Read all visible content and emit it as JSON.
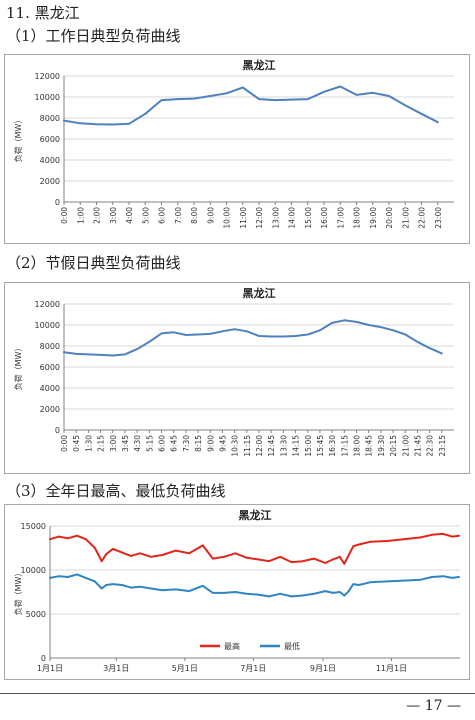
{
  "document": {
    "section_heading": "11. 黑龙江",
    "sub1": "（1）工作日典型负荷曲线",
    "sub2": "（2）节假日典型负荷曲线",
    "sub3": "（3）全年日最高、最低负荷曲线",
    "page_number": "— 17 —"
  },
  "chart_data": [
    {
      "type": "line",
      "title": "黑龙江",
      "ylabel": "负荷（MW）",
      "ylim": [
        0,
        12000
      ],
      "yticks": [
        "0",
        "2000",
        "4000",
        "6000",
        "8000",
        "10000",
        "12000"
      ],
      "categories": [
        "0:00",
        "1:00",
        "2:00",
        "3:00",
        "4:00",
        "5:00",
        "6:00",
        "7:00",
        "8:00",
        "9:00",
        "10:00",
        "11:00",
        "12:00",
        "13:00",
        "14:00",
        "15:00",
        "16:00",
        "17:00",
        "18:00",
        "19:00",
        "20:00",
        "21:00",
        "22:00",
        "23:00"
      ],
      "grid": true,
      "color": "#4f81bd",
      "series": [
        {
          "values": [
            7750,
            7500,
            7400,
            7380,
            7450,
            8400,
            9700,
            9800,
            9850,
            10100,
            10350,
            10900,
            9800,
            9700,
            9750,
            9800,
            10500,
            11000,
            10200,
            10400,
            10100,
            9200,
            8400,
            7600
          ]
        }
      ]
    },
    {
      "type": "line",
      "title": "黑龙江",
      "ylabel": "负荷（MW）",
      "ylim": [
        0,
        12000
      ],
      "yticks": [
        "0",
        "2000",
        "4000",
        "6000",
        "8000",
        "10000",
        "12000"
      ],
      "categories": [
        "0:00",
        "0:45",
        "1:30",
        "2:15",
        "3:00",
        "3:45",
        "4:30",
        "5:15",
        "6:00",
        "6:45",
        "7:30",
        "8:15",
        "9:00",
        "9:45",
        "10:30",
        "11:15",
        "12:00",
        "12:45",
        "13:30",
        "14:15",
        "15:00",
        "15:45",
        "16:30",
        "17:15",
        "18:00",
        "18:45",
        "19:30",
        "20:15",
        "21:00",
        "21:45",
        "22:30",
        "23:15"
      ],
      "grid": true,
      "color": "#4f81bd",
      "series": [
        {
          "values": [
            7400,
            7250,
            7200,
            7150,
            7100,
            7200,
            7700,
            8400,
            9200,
            9300,
            9050,
            9100,
            9150,
            9400,
            9600,
            9400,
            8950,
            8900,
            8900,
            8950,
            9100,
            9500,
            10200,
            10450,
            10300,
            10000,
            9800,
            9500,
            9100,
            8400,
            7800,
            7300
          ]
        }
      ]
    },
    {
      "type": "line",
      "title": "黑龙江",
      "ylabel": "负荷（MW）",
      "ylim": [
        0,
        15000
      ],
      "yticks": [
        "0",
        "5000",
        "10000",
        "15000"
      ],
      "x_ticks": [
        "1月1日",
        "3月1日",
        "5月1日",
        "7月1日",
        "9月1日",
        "11月1日"
      ],
      "x_tick_days": [
        0,
        59,
        120,
        181,
        243,
        304
      ],
      "x_range_days": [
        0,
        365
      ],
      "grid": true,
      "legend_placement": "bottom",
      "series": [
        {
          "name": "最高",
          "color": "#e0251b",
          "x_days": [
            0,
            8,
            16,
            24,
            32,
            40,
            46,
            50,
            56,
            64,
            72,
            80,
            90,
            100,
            112,
            124,
            136,
            145,
            155,
            165,
            175,
            185,
            195,
            205,
            215,
            225,
            235,
            245,
            252,
            258,
            262,
            266,
            270,
            275,
            285,
            300,
            315,
            330,
            340,
            350,
            358,
            364
          ],
          "values": [
            13500,
            13800,
            13600,
            13900,
            13500,
            12500,
            11000,
            11800,
            12400,
            12000,
            11600,
            11900,
            11500,
            11700,
            12200,
            11900,
            12800,
            11300,
            11500,
            11900,
            11400,
            11200,
            11000,
            11500,
            10900,
            11000,
            11300,
            10800,
            11200,
            11500,
            10700,
            11700,
            12700,
            12900,
            13200,
            13300,
            13500,
            13700,
            14000,
            14100,
            13800,
            13900
          ]
        },
        {
          "name": "最低",
          "color": "#2e86c1",
          "x_days": [
            0,
            8,
            16,
            24,
            32,
            40,
            46,
            50,
            56,
            64,
            72,
            80,
            90,
            100,
            112,
            124,
            136,
            145,
            155,
            165,
            175,
            185,
            195,
            205,
            215,
            225,
            235,
            245,
            252,
            258,
            262,
            266,
            270,
            275,
            285,
            300,
            315,
            330,
            340,
            350,
            358,
            364
          ],
          "values": [
            9100,
            9300,
            9200,
            9500,
            9100,
            8700,
            7900,
            8300,
            8400,
            8300,
            8000,
            8100,
            7900,
            7700,
            7800,
            7600,
            8200,
            7400,
            7400,
            7500,
            7300,
            7200,
            7000,
            7300,
            7000,
            7100,
            7300,
            7600,
            7400,
            7500,
            7100,
            7600,
            8400,
            8300,
            8600,
            8700,
            8800,
            8900,
            9200,
            9300,
            9100,
            9200
          ]
        }
      ]
    }
  ]
}
